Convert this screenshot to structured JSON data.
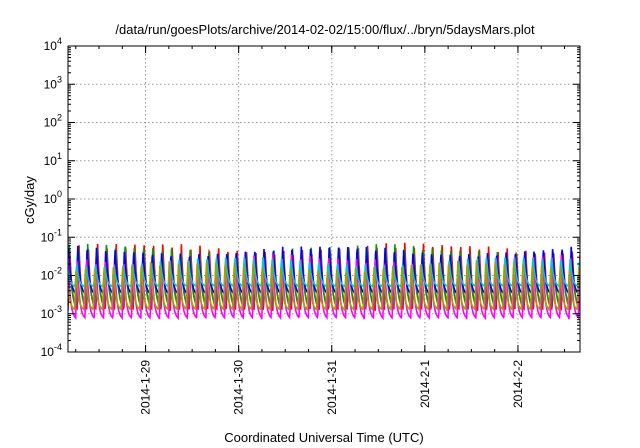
{
  "chart_data": {
    "type": "line",
    "title": "/data/run/goesPlots/archive/2014-02-02/15:00/flux/../bryn/5daysMars.plot",
    "xlabel": "Coordinated Universal Time (UTC)",
    "ylabel": "cGy/day",
    "yscale": "log",
    "ylim": [
      0.0001,
      10000
    ],
    "y_ticks": [
      {
        "base": "10",
        "exp": "-4",
        "value": 0.0001
      },
      {
        "base": "10",
        "exp": "-3",
        "value": 0.001
      },
      {
        "base": "10",
        "exp": "-2",
        "value": 0.01
      },
      {
        "base": "10",
        "exp": "-1",
        "value": 0.1
      },
      {
        "base": "10",
        "exp": "0",
        "value": 1
      },
      {
        "base": "10",
        "exp": "1",
        "value": 10
      },
      {
        "base": "10",
        "exp": "2",
        "value": 100
      },
      {
        "base": "10",
        "exp": "3",
        "value": 1000
      },
      {
        "base": "10",
        "exp": "4",
        "value": 10000
      }
    ],
    "xlim": [
      "2014-01-28T04:00",
      "2014-02-02T16:00"
    ],
    "x_ticks": [
      {
        "label": "2014-1-29",
        "value": "2014-01-29T00:00"
      },
      {
        "label": "2014-1-30",
        "value": "2014-01-30T00:00"
      },
      {
        "label": "2014-1-31",
        "value": "2014-01-31T00:00"
      },
      {
        "label": "2014-2-1",
        "value": "2014-02-01T00:00"
      },
      {
        "label": "2014-2-2",
        "value": "2014-02-02T00:00"
      }
    ],
    "grid": true,
    "legend": "none",
    "pattern": {
      "description_values": "sawtooth oscillation, approx. 10 peaks per day",
      "cycles_per_day": 10,
      "peak_value": 0.055,
      "trough_value": 0.001
    },
    "series": [
      {
        "color": "#ff0000",
        "peak": 0.06,
        "trough": 0.0012
      },
      {
        "color": "#00a000",
        "peak": 0.055,
        "trough": 0.0015
      },
      {
        "color": "#0000ff",
        "peak": 0.05,
        "trough": 0.003
      },
      {
        "color": "#ff00ff",
        "peak": 0.03,
        "trough": 0.0007
      },
      {
        "color": "#00cccc",
        "peak": 0.025,
        "trough": 0.005
      },
      {
        "color": "#a0a000",
        "peak": 0.02,
        "trough": 0.0012
      }
    ]
  }
}
